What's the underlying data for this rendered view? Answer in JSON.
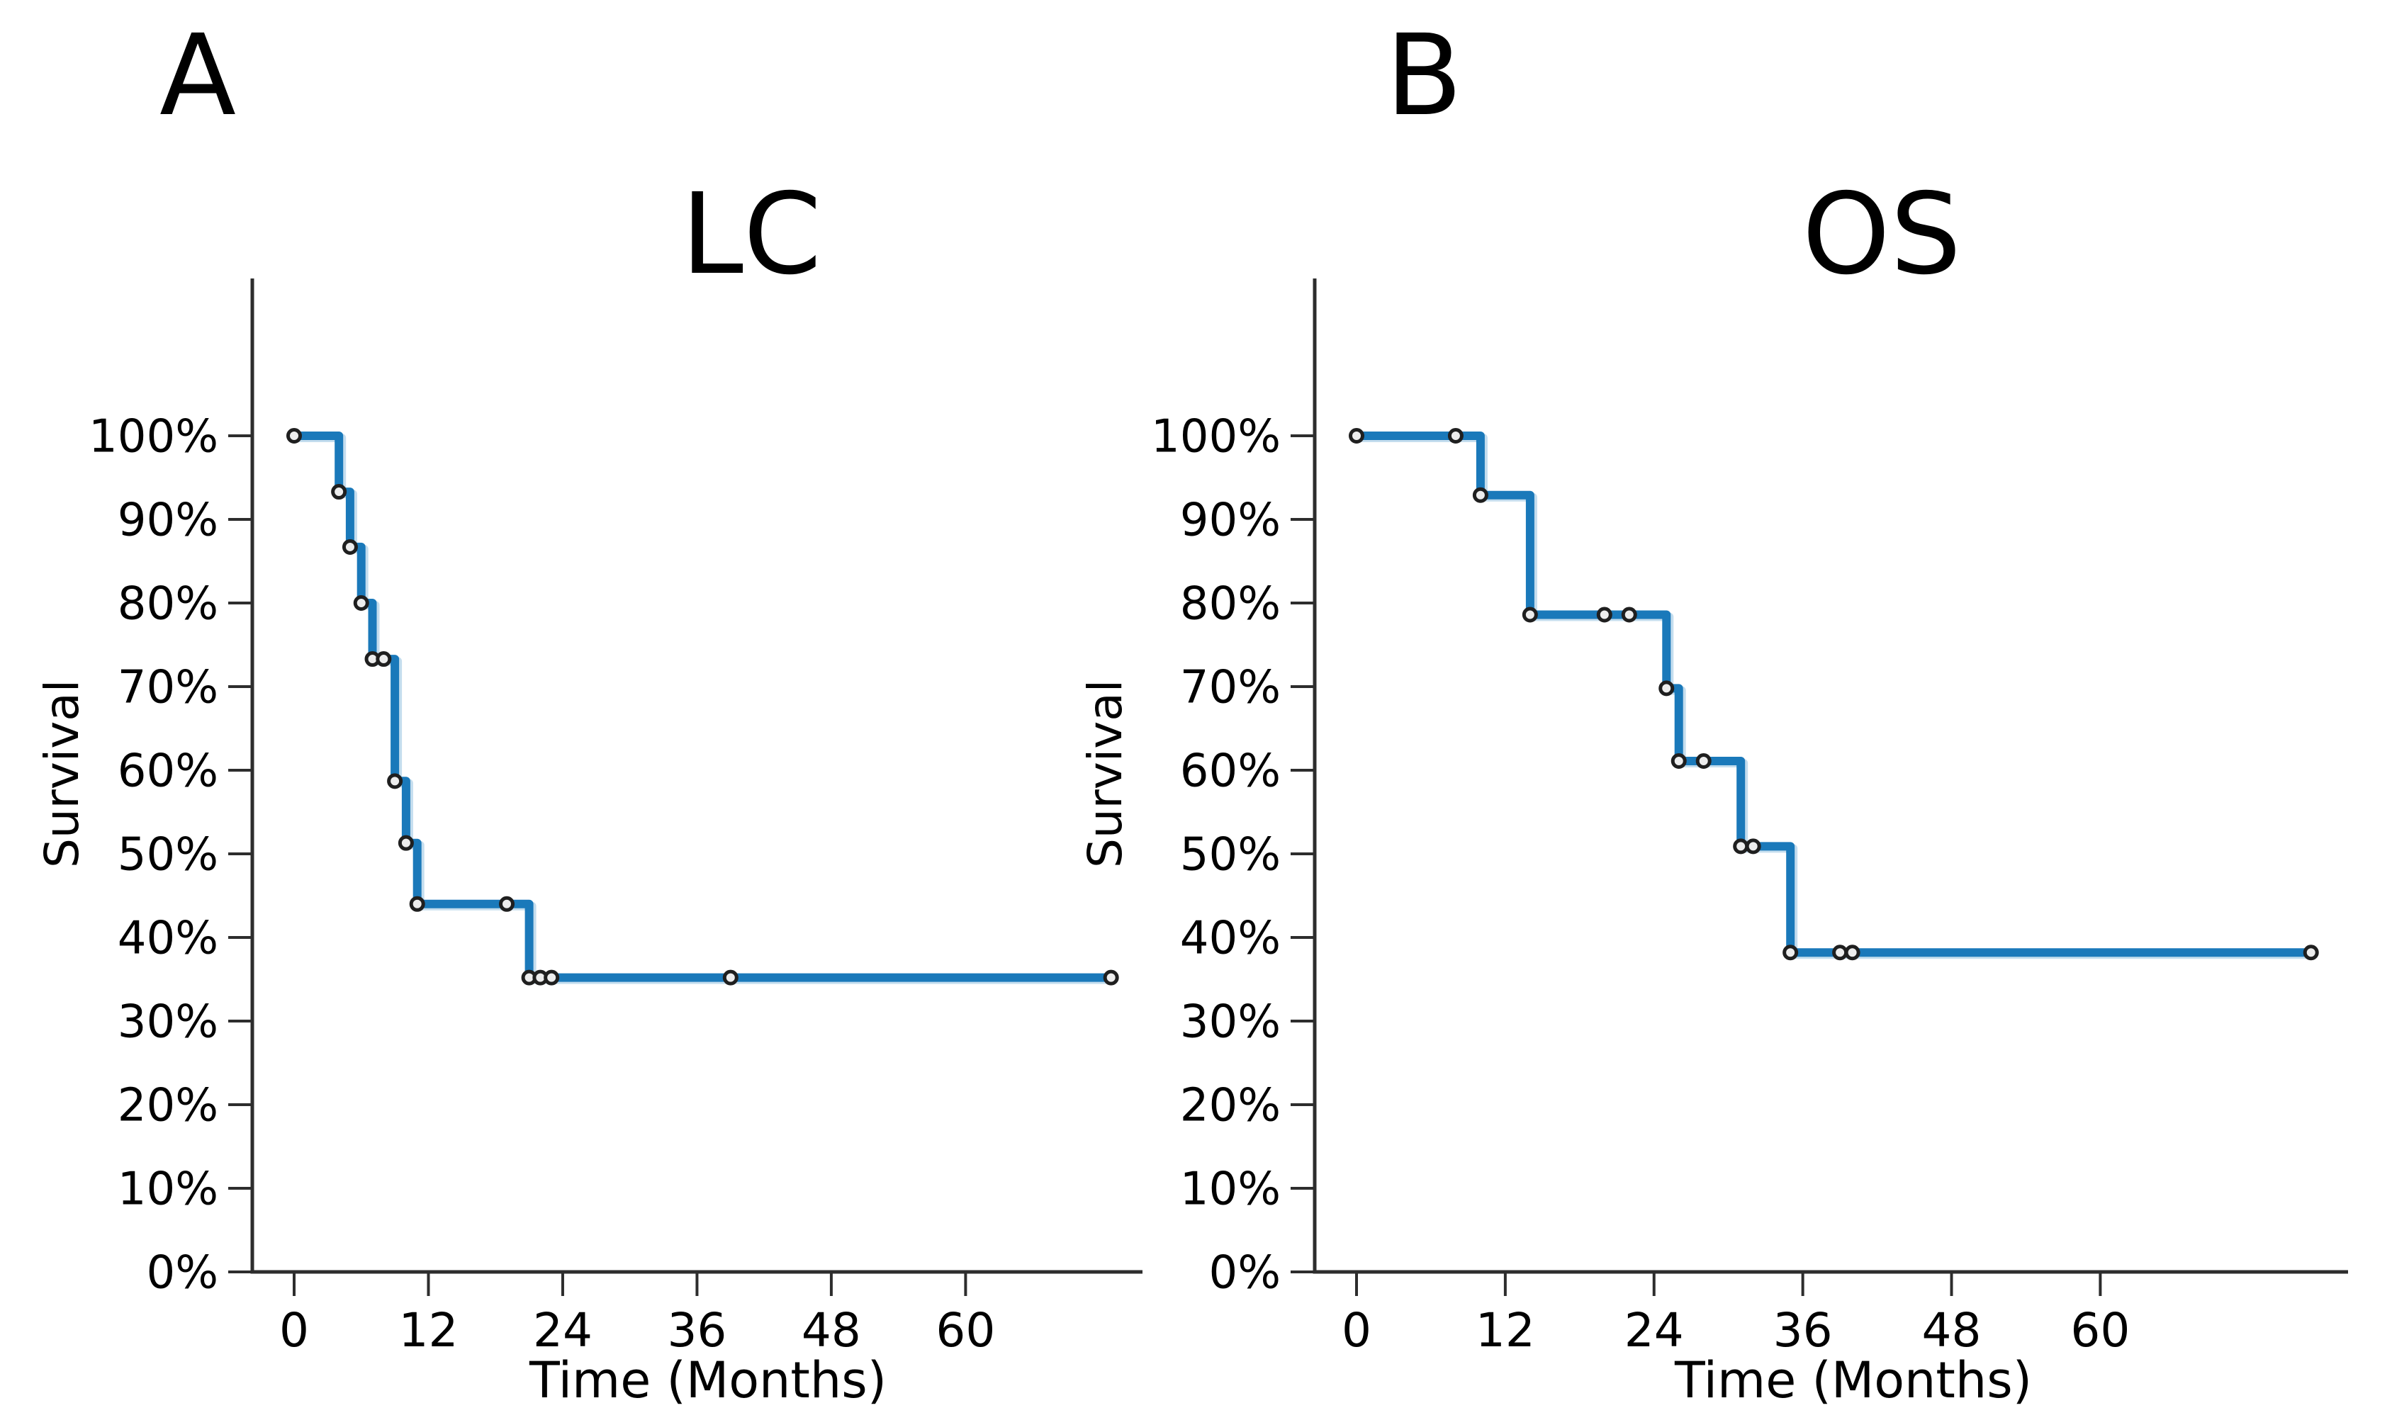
{
  "figure": {
    "background": "#ffffff",
    "axis_color": "#2d2d2d",
    "text_color": "#000000",
    "marker_fill": "#ededed",
    "marker_stroke": "#1f1f1f"
  },
  "chart_data": [
    {
      "type": "line",
      "chart_kind": "kaplan-meier-step",
      "panel_label": "A",
      "title": "LC",
      "xlabel": "Time (Months)",
      "ylabel": "Survival",
      "line_color": "#1a79ba",
      "xlim": [
        0,
        76
      ],
      "ylim_percent": [
        0,
        100
      ],
      "grid": false,
      "legend": "none",
      "x_ticks": [
        0,
        12,
        24,
        36,
        48,
        60
      ],
      "x_tick_labels": [
        "0",
        "12",
        "24",
        "36",
        "48",
        "60"
      ],
      "y_ticks": [
        0,
        10,
        20,
        30,
        40,
        50,
        60,
        70,
        80,
        90,
        100
      ],
      "y_tick_labels": [
        "0%",
        "10%",
        "20%",
        "30%",
        "40%",
        "50%",
        "60%",
        "70%",
        "80%",
        "90%",
        "100%"
      ],
      "steps": [
        [
          0,
          100
        ],
        [
          4,
          100
        ],
        [
          4,
          93.3
        ],
        [
          5,
          93.3
        ],
        [
          5,
          86.7
        ],
        [
          6,
          86.7
        ],
        [
          6,
          80
        ],
        [
          7,
          80
        ],
        [
          7,
          73.3
        ],
        [
          9,
          73.3
        ],
        [
          9,
          58.7
        ],
        [
          10,
          58.7
        ],
        [
          10,
          51.3
        ],
        [
          11,
          51.3
        ],
        [
          11,
          44
        ],
        [
          21,
          44
        ],
        [
          21,
          35.2
        ],
        [
          73,
          35.2
        ]
      ],
      "markers": [
        {
          "t": 0,
          "s": 100,
          "kind": "start"
        },
        {
          "t": 4,
          "s": 93.3,
          "kind": "event"
        },
        {
          "t": 5,
          "s": 86.7,
          "kind": "event"
        },
        {
          "t": 6,
          "s": 80,
          "kind": "event"
        },
        {
          "t": 7,
          "s": 73.3,
          "kind": "event"
        },
        {
          "t": 8,
          "s": 73.3,
          "kind": "censor"
        },
        {
          "t": 9,
          "s": 58.7,
          "kind": "event"
        },
        {
          "t": 10,
          "s": 51.3,
          "kind": "event"
        },
        {
          "t": 11,
          "s": 44,
          "kind": "event"
        },
        {
          "t": 19,
          "s": 44,
          "kind": "censor"
        },
        {
          "t": 21,
          "s": 35.2,
          "kind": "event"
        },
        {
          "t": 22,
          "s": 35.2,
          "kind": "censor"
        },
        {
          "t": 23,
          "s": 35.2,
          "kind": "censor"
        },
        {
          "t": 39,
          "s": 35.2,
          "kind": "censor"
        },
        {
          "t": 73,
          "s": 35.2,
          "kind": "censor"
        }
      ]
    },
    {
      "type": "line",
      "chart_kind": "kaplan-meier-step",
      "panel_label": "B",
      "title": "OS",
      "xlabel": "Time (Months)",
      "ylabel": "Survival",
      "line_color": "#1a79ba",
      "xlim": [
        0,
        80
      ],
      "ylim_percent": [
        0,
        100
      ],
      "grid": false,
      "legend": "none",
      "x_ticks": [
        0,
        12,
        24,
        36,
        48,
        60
      ],
      "x_tick_labels": [
        "0",
        "12",
        "24",
        "36",
        "48",
        "60"
      ],
      "y_ticks": [
        0,
        10,
        20,
        30,
        40,
        50,
        60,
        70,
        80,
        90,
        100
      ],
      "y_tick_labels": [
        "0%",
        "10%",
        "20%",
        "30%",
        "40%",
        "50%",
        "60%",
        "70%",
        "80%",
        "90%",
        "100%"
      ],
      "steps": [
        [
          0,
          100
        ],
        [
          10,
          100
        ],
        [
          10,
          92.9
        ],
        [
          14,
          92.9
        ],
        [
          14,
          78.6
        ],
        [
          25,
          78.6
        ],
        [
          25,
          69.8
        ],
        [
          26,
          69.8
        ],
        [
          26,
          61.1
        ],
        [
          31,
          61.1
        ],
        [
          31,
          50.9
        ],
        [
          35,
          50.9
        ],
        [
          35,
          38.2
        ],
        [
          77,
          38.2
        ]
      ],
      "markers": [
        {
          "t": 0,
          "s": 100,
          "kind": "start"
        },
        {
          "t": 8,
          "s": 100,
          "kind": "censor"
        },
        {
          "t": 10,
          "s": 92.9,
          "kind": "event"
        },
        {
          "t": 14,
          "s": 78.6,
          "kind": "event"
        },
        {
          "t": 20,
          "s": 78.6,
          "kind": "censor"
        },
        {
          "t": 22,
          "s": 78.6,
          "kind": "censor"
        },
        {
          "t": 25,
          "s": 69.8,
          "kind": "event"
        },
        {
          "t": 26,
          "s": 61.1,
          "kind": "event"
        },
        {
          "t": 28,
          "s": 61.1,
          "kind": "censor"
        },
        {
          "t": 31,
          "s": 50.9,
          "kind": "event"
        },
        {
          "t": 32,
          "s": 50.9,
          "kind": "censor"
        },
        {
          "t": 35,
          "s": 38.2,
          "kind": "event"
        },
        {
          "t": 39,
          "s": 38.2,
          "kind": "censor"
        },
        {
          "t": 40,
          "s": 38.2,
          "kind": "censor"
        },
        {
          "t": 77,
          "s": 38.2,
          "kind": "censor"
        }
      ]
    }
  ]
}
